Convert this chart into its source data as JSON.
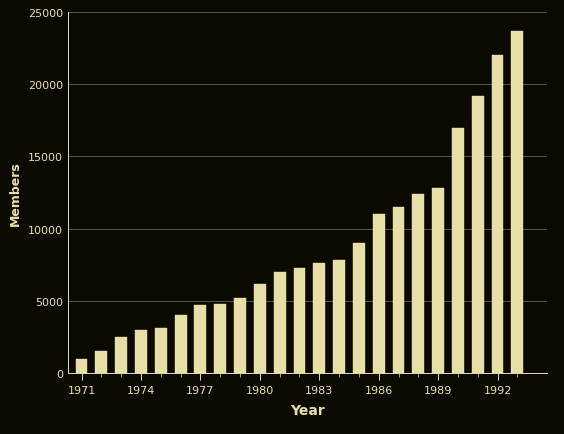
{
  "years": [
    1971,
    1972,
    1973,
    1974,
    1975,
    1976,
    1977,
    1978,
    1979,
    1980,
    1981,
    1982,
    1983,
    1984,
    1985,
    1986,
    1987,
    1988,
    1989,
    1990,
    1991,
    1992,
    1993
  ],
  "members": [
    1000,
    1500,
    2500,
    3000,
    3100,
    4000,
    4700,
    4800,
    5200,
    6200,
    7000,
    7300,
    7600,
    7800,
    9000,
    11000,
    11500,
    12400,
    12800,
    17000,
    19200,
    22000,
    23700
  ],
  "bar_color": "#e8dfa8",
  "background_color": "#0a0a00",
  "text_color": "#e8dfa8",
  "grid_color": "#e8dfa8",
  "xlabel": "Year",
  "ylabel": "Members",
  "ylim": [
    0,
    25000
  ],
  "yticks": [
    0,
    5000,
    10000,
    15000,
    20000,
    25000
  ],
  "xtick_years": [
    1971,
    1974,
    1977,
    1980,
    1983,
    1986,
    1989,
    1992
  ],
  "xlim_left": 1970.3,
  "xlim_right": 1994.5,
  "bar_width": 0.6,
  "axis_fontsize": 9,
  "tick_fontsize": 8,
  "label_fontsize": 10
}
